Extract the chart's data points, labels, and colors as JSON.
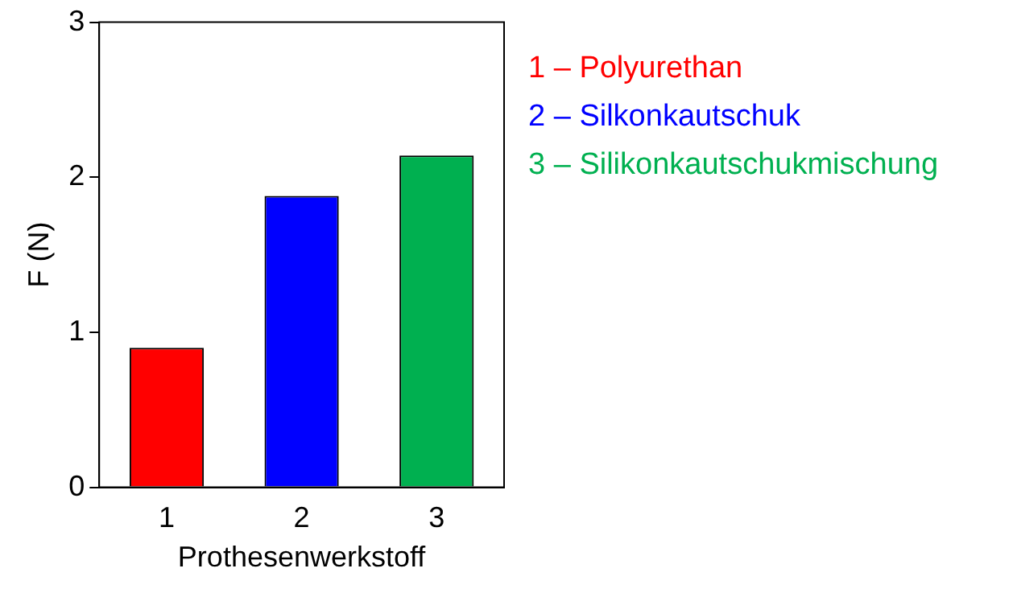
{
  "chart_data": {
    "type": "bar",
    "categories": [
      "1",
      "2",
      "3"
    ],
    "values": [
      0.9,
      1.88,
      2.14
    ],
    "colors": [
      "#ff0000",
      "#0000ff",
      "#00b050"
    ],
    "xlabel": "Prothesenwerkstoff",
    "ylabel": "F (N)",
    "ylim": [
      0,
      3
    ],
    "yticks": [
      0,
      1,
      2,
      3
    ],
    "grid": false,
    "legend": false,
    "annotations": [
      "1 – Polyurethan",
      "2 – Silkonkautschuk",
      "3 – Silikonkautschukmischung"
    ]
  }
}
